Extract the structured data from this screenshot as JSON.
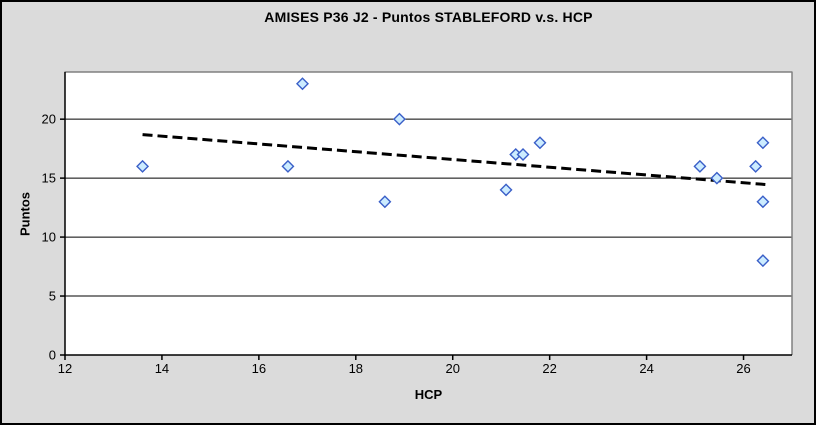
{
  "window": {
    "background_color": "#dbdbdb",
    "frame_border_color": "#000000"
  },
  "chart_data": {
    "type": "scatter",
    "title": "AMISES P36 J2 - Puntos STABLEFORD v.s. HCP",
    "xlabel": "HCP",
    "ylabel": "Puntos",
    "xlim": [
      12,
      27
    ],
    "ylim": [
      0,
      24
    ],
    "x_ticks": [
      12,
      14,
      16,
      18,
      20,
      22,
      24,
      26
    ],
    "y_ticks": [
      0,
      5,
      10,
      15,
      20
    ],
    "grid": "horizontal-only",
    "legend_position": "none",
    "series": [
      {
        "name": "Puntos STABLEFORD",
        "marker": "diamond",
        "points": [
          [
            13.6,
            16
          ],
          [
            16.6,
            16
          ],
          [
            16.9,
            23
          ],
          [
            18.6,
            13
          ],
          [
            18.9,
            20
          ],
          [
            21.1,
            14
          ],
          [
            21.3,
            17
          ],
          [
            21.45,
            17
          ],
          [
            21.8,
            18
          ],
          [
            25.1,
            16
          ],
          [
            25.45,
            15
          ],
          [
            26.25,
            16
          ],
          [
            26.4,
            18
          ],
          [
            26.4,
            13
          ],
          [
            26.4,
            8
          ]
        ]
      }
    ],
    "trendline": {
      "type": "linear",
      "style": "dashed",
      "x1": 13.6,
      "y1": 18.69,
      "x2": 26.45,
      "y2": 14.46
    },
    "colors": {
      "plot_background": "#ffffff",
      "gridline": "#000000",
      "axis": "#000000",
      "plot_border": "#808080",
      "marker_fill": "#ccecff",
      "marker_stroke": "#3a5fc8",
      "trendline": "#000000",
      "tick_text": "#000000"
    }
  }
}
